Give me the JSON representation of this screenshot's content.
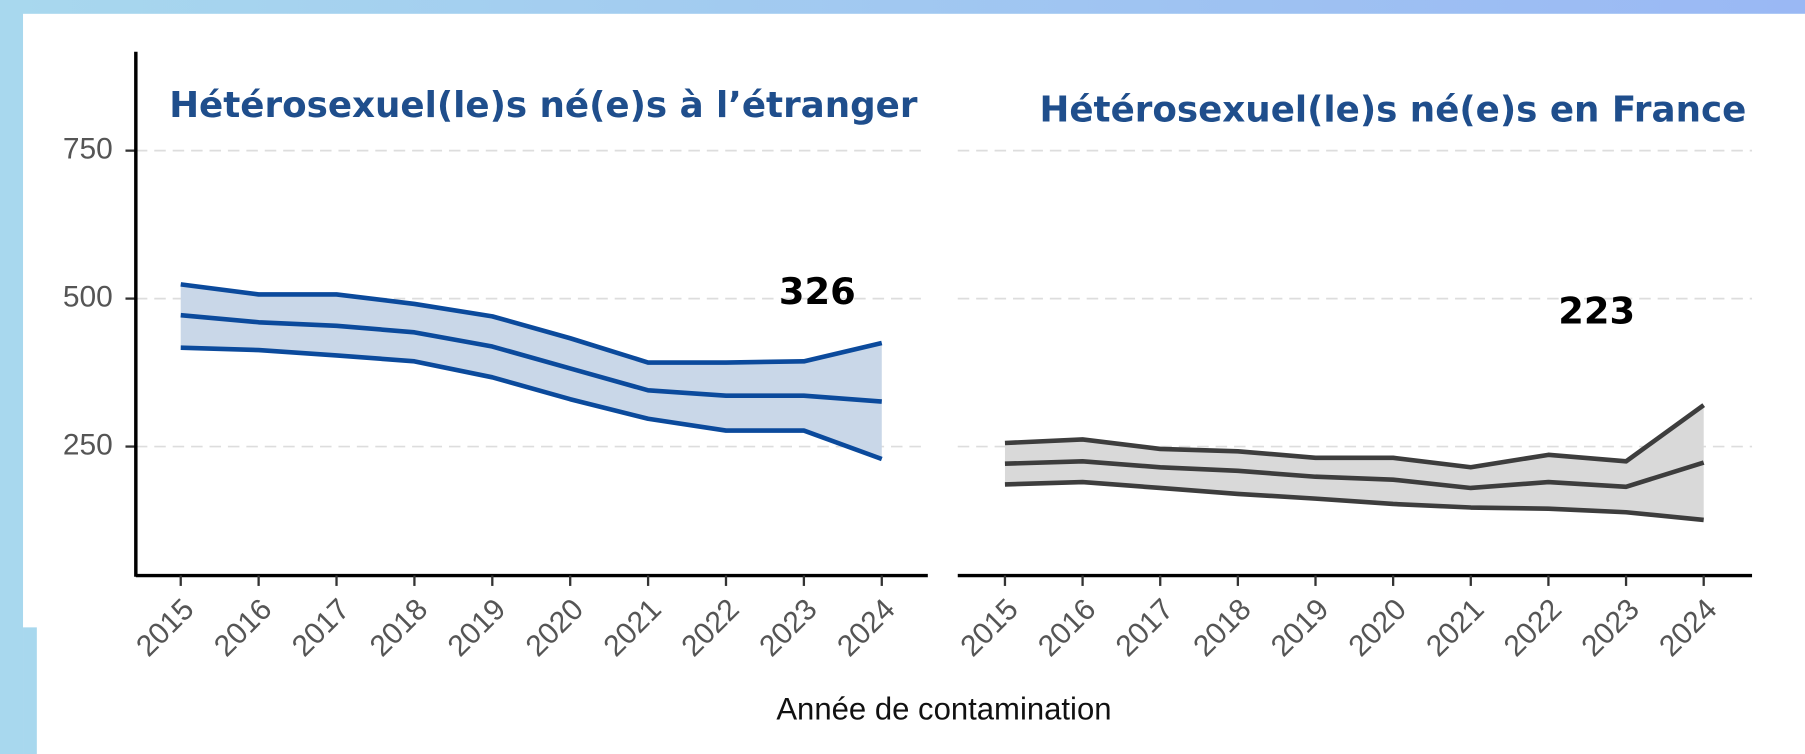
{
  "chart_data": [
    {
      "type": "band-line",
      "title": "Hétérosexuel(le)s né(e)s à l’étranger",
      "categories": [
        "2015",
        "2016",
        "2017",
        "2018",
        "2019",
        "2020",
        "2021",
        "2022",
        "2023",
        "2024"
      ],
      "values": [
        472,
        460,
        454,
        443,
        419,
        382,
        345,
        336,
        336,
        326
      ],
      "upper": [
        524,
        507,
        507,
        491,
        470,
        433,
        392,
        392,
        394,
        425
      ],
      "lower": [
        417,
        413,
        404,
        394,
        367,
        330,
        297,
        277,
        277,
        229
      ],
      "color": "#0b4a9c",
      "band_color": "#c9d7e8",
      "ylim": [
        32,
        917
      ],
      "yticks": [
        250,
        500,
        750
      ],
      "grid": true
    },
    {
      "type": "band-line",
      "title": "Hétérosexuel(le)s né(e)s en France",
      "categories": [
        "2015",
        "2016",
        "2017",
        "2018",
        "2019",
        "2020",
        "2021",
        "2022",
        "2023",
        "2024"
      ],
      "values": [
        221,
        225,
        215,
        209,
        199,
        194,
        180,
        190,
        182,
        223
      ],
      "upper": [
        256,
        262,
        246,
        242,
        231,
        231,
        215,
        236,
        225,
        320
      ],
      "lower": [
        186,
        190,
        180,
        170,
        162,
        153,
        147,
        145,
        139,
        126
      ],
      "color": "#3d3d3d",
      "band_color": "#d9d9d9",
      "ylim": [
        32,
        917
      ],
      "yticks": [
        250,
        500,
        750
      ],
      "grid": true
    }
  ],
  "xlabel": "Année de contamination"
}
